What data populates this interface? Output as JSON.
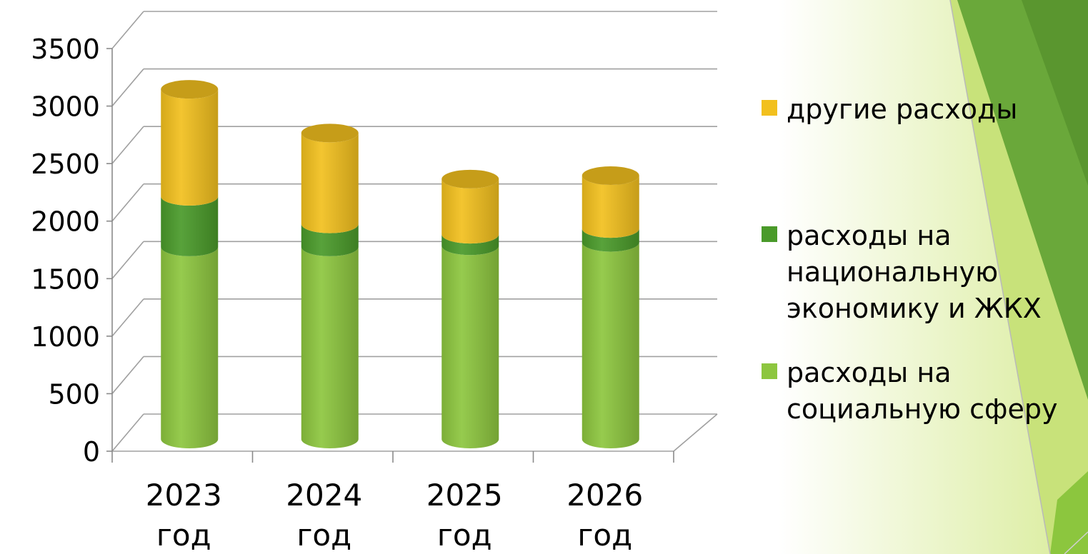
{
  "chart_data": {
    "type": "bar",
    "stacked": true,
    "style": "3d-cylinder",
    "categories": [
      "2023 год",
      "2024 год",
      "2025 год",
      "2026 год"
    ],
    "series": [
      {
        "name": "расходы на социальную сферу",
        "color": "#8dc63f",
        "values": [
          1670,
          1670,
          1680,
          1710
        ]
      },
      {
        "name": "расходы на национальную экономику и ЖКХ",
        "color": "#4a9a2a",
        "values": [
          440,
          200,
          100,
          120
        ]
      },
      {
        "name": "другие расходы",
        "color": "#f2c01e",
        "values": [
          930,
          790,
          480,
          460
        ]
      }
    ],
    "ylim": [
      0,
      3500
    ],
    "yticks": [
      0,
      500,
      1000,
      1500,
      2000,
      2500,
      3000,
      3500
    ],
    "grid": true,
    "legend_position": "right",
    "legend_order": [
      "другие расходы",
      "расходы на национальную экономику и ЖКХ",
      "расходы на социальную сферу"
    ]
  },
  "legend": {
    "items": [
      {
        "lines": [
          "другие расходы"
        ],
        "color": "#f2c01e"
      },
      {
        "lines": [
          "расходы на",
          "национальную",
          "экономику и ЖКХ"
        ],
        "color": "#4a9a2a"
      },
      {
        "lines": [
          "расходы на",
          "социальную сферу"
        ],
        "color": "#8dc63f"
      }
    ]
  },
  "category_labels": [
    [
      "2023",
      "год"
    ],
    [
      "2024",
      "год"
    ],
    [
      "2025",
      "год"
    ],
    [
      "2026",
      "год"
    ]
  ]
}
